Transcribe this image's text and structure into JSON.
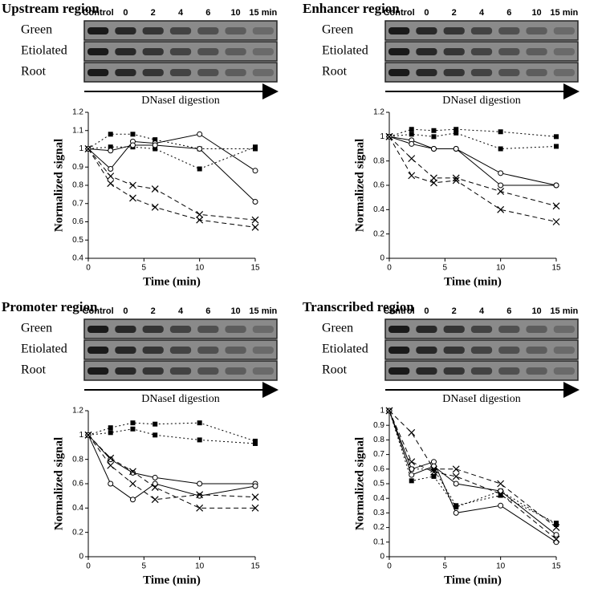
{
  "chart_data": [
    {
      "type": "line",
      "title": "Upstream region",
      "gel_lanes": [
        "Control",
        "0",
        "2",
        "4",
        "6",
        "10",
        "15 min"
      ],
      "gel_rows": [
        "Green",
        "Etiolated",
        "Root"
      ],
      "gel_arrow": "DNaseI digestion",
      "xlabel": "Time (min)",
      "ylabel": "Normalized signal",
      "x": [
        0,
        2,
        4,
        6,
        10,
        15
      ],
      "xlim": [
        0,
        15
      ],
      "xticks": [
        0,
        5,
        10,
        15
      ],
      "ylim": [
        0.4,
        1.2
      ],
      "yticks": [
        0.4,
        0.5,
        0.6,
        0.7,
        0.8,
        0.9,
        1,
        1.1,
        1.2
      ],
      "series": [
        {
          "marker": "square",
          "dash": "dotted",
          "color": "#000000",
          "values": [
            1,
            1.08,
            1.08,
            1.05,
            1.0,
            1.0
          ]
        },
        {
          "marker": "square",
          "dash": "dotted",
          "color": "#000000",
          "values": [
            1,
            1.01,
            1.01,
            1.0,
            0.89,
            1.01
          ]
        },
        {
          "marker": "circle",
          "dash": "solid",
          "color": "#000000",
          "values": [
            1,
            0.89,
            1.04,
            1.03,
            1.08,
            0.88
          ]
        },
        {
          "marker": "circle",
          "dash": "solid",
          "color": "#000000",
          "values": [
            1,
            0.99,
            1.02,
            1.02,
            1.0,
            0.71
          ]
        },
        {
          "marker": "cross",
          "dash": "dashed",
          "color": "#000000",
          "values": [
            1,
            0.85,
            0.8,
            0.78,
            0.64,
            0.61
          ]
        },
        {
          "marker": "cross",
          "dash": "dashed",
          "color": "#000000",
          "values": [
            1,
            0.81,
            0.73,
            0.68,
            0.61,
            0.57
          ]
        }
      ]
    },
    {
      "type": "line",
      "title": "Enhancer region",
      "gel_lanes": [
        "Control",
        "0",
        "2",
        "4",
        "6",
        "10",
        "15 min"
      ],
      "gel_rows": [
        "Green",
        "Etiolated",
        "Root"
      ],
      "gel_arrow": "DNaseI digestion",
      "xlabel": "Time (min)",
      "ylabel": "Normalized signal",
      "x": [
        0,
        2,
        4,
        6,
        10,
        15
      ],
      "xlim": [
        0,
        15
      ],
      "xticks": [
        0,
        5,
        10,
        15
      ],
      "ylim": [
        0,
        1.2
      ],
      "yticks": [
        0,
        0.2,
        0.4,
        0.6,
        0.8,
        1,
        1.2
      ],
      "series": [
        {
          "marker": "square",
          "dash": "dotted",
          "color": "#000000",
          "values": [
            1,
            1.06,
            1.05,
            1.06,
            1.04,
            1.0
          ]
        },
        {
          "marker": "square",
          "dash": "dotted",
          "color": "#000000",
          "values": [
            1,
            1.02,
            1.0,
            1.03,
            0.9,
            0.92
          ]
        },
        {
          "marker": "circle",
          "dash": "solid",
          "color": "#000000",
          "values": [
            1,
            0.97,
            0.9,
            0.9,
            0.7,
            0.6
          ]
        },
        {
          "marker": "circle",
          "dash": "solid",
          "color": "#000000",
          "values": [
            1,
            0.94,
            0.9,
            0.9,
            0.6,
            0.6
          ]
        },
        {
          "marker": "cross",
          "dash": "dashed",
          "color": "#000000",
          "values": [
            1,
            0.82,
            0.66,
            0.66,
            0.55,
            0.43
          ]
        },
        {
          "marker": "cross",
          "dash": "dashed",
          "color": "#000000",
          "values": [
            1,
            0.68,
            0.62,
            0.64,
            0.4,
            0.3
          ]
        }
      ]
    },
    {
      "type": "line",
      "title": "Promoter region",
      "gel_lanes": [
        "Control",
        "0",
        "2",
        "4",
        "6",
        "10",
        "15 min"
      ],
      "gel_rows": [
        "Green",
        "Etiolated",
        "Root"
      ],
      "gel_arrow": "DNaseI digestion",
      "xlabel": "Time (min)",
      "ylabel": "Normalized signal",
      "x": [
        0,
        2,
        4,
        6,
        10,
        15
      ],
      "xlim": [
        0,
        15
      ],
      "xticks": [
        0,
        5,
        10,
        15
      ],
      "ylim": [
        0,
        1.2
      ],
      "yticks": [
        0,
        0.2,
        0.4,
        0.6,
        0.8,
        1,
        1.2
      ],
      "series": [
        {
          "marker": "square",
          "dash": "dotted",
          "color": "#000000",
          "values": [
            1,
            1.06,
            1.1,
            1.09,
            1.1,
            0.95
          ]
        },
        {
          "marker": "square",
          "dash": "dotted",
          "color": "#000000",
          "values": [
            1,
            1.02,
            1.05,
            1.0,
            0.96,
            0.93
          ]
        },
        {
          "marker": "circle",
          "dash": "solid",
          "color": "#000000",
          "values": [
            1,
            0.8,
            0.69,
            0.65,
            0.6,
            0.6
          ]
        },
        {
          "marker": "circle",
          "dash": "solid",
          "color": "#000000",
          "values": [
            1,
            0.6,
            0.47,
            0.6,
            0.5,
            0.58
          ]
        },
        {
          "marker": "cross",
          "dash": "dashed",
          "color": "#000000",
          "values": [
            1,
            0.75,
            0.6,
            0.47,
            0.51,
            0.49
          ]
        },
        {
          "marker": "cross",
          "dash": "dashed",
          "color": "#000000",
          "values": [
            1,
            0.81,
            0.7,
            0.57,
            0.4,
            0.4
          ]
        }
      ]
    },
    {
      "type": "line",
      "title": "Transcribed region",
      "gel_lanes": [
        "Control",
        "0",
        "2",
        "4",
        "6",
        "10",
        "15 min"
      ],
      "gel_rows": [
        "Green",
        "Etiolated",
        "Root"
      ],
      "gel_arrow": "DNaseI digestion",
      "xlabel": "Time (min)",
      "ylabel": "Normalized signal",
      "x": [
        0,
        2,
        4,
        6,
        10,
        15
      ],
      "xlim": [
        0,
        15
      ],
      "xticks": [
        0,
        5,
        10,
        15
      ],
      "ylim": [
        0,
        1
      ],
      "yticks": [
        0,
        0.1,
        0.2,
        0.3,
        0.4,
        0.5,
        0.6,
        0.7,
        0.8,
        0.9,
        1
      ],
      "series": [
        {
          "marker": "square",
          "dash": "dotted",
          "color": "#000000",
          "values": [
            1,
            0.52,
            0.55,
            0.34,
            0.45,
            0.22
          ]
        },
        {
          "marker": "square",
          "dash": "dotted",
          "color": "#000000",
          "values": [
            1,
            0.6,
            0.6,
            0.35,
            0.42,
            0.23
          ]
        },
        {
          "marker": "circle",
          "dash": "solid",
          "color": "#000000",
          "values": [
            1,
            0.6,
            0.65,
            0.3,
            0.35,
            0.1
          ]
        },
        {
          "marker": "circle",
          "dash": "solid",
          "color": "#000000",
          "values": [
            1,
            0.56,
            0.62,
            0.5,
            0.45,
            0.15
          ]
        },
        {
          "marker": "cross",
          "dash": "dashed",
          "color": "#000000",
          "values": [
            1,
            0.85,
            0.6,
            0.6,
            0.5,
            0.2
          ]
        },
        {
          "marker": "cross",
          "dash": "dashed",
          "color": "#000000",
          "values": [
            1,
            0.65,
            0.58,
            0.55,
            0.43,
            0.12
          ]
        }
      ]
    }
  ]
}
